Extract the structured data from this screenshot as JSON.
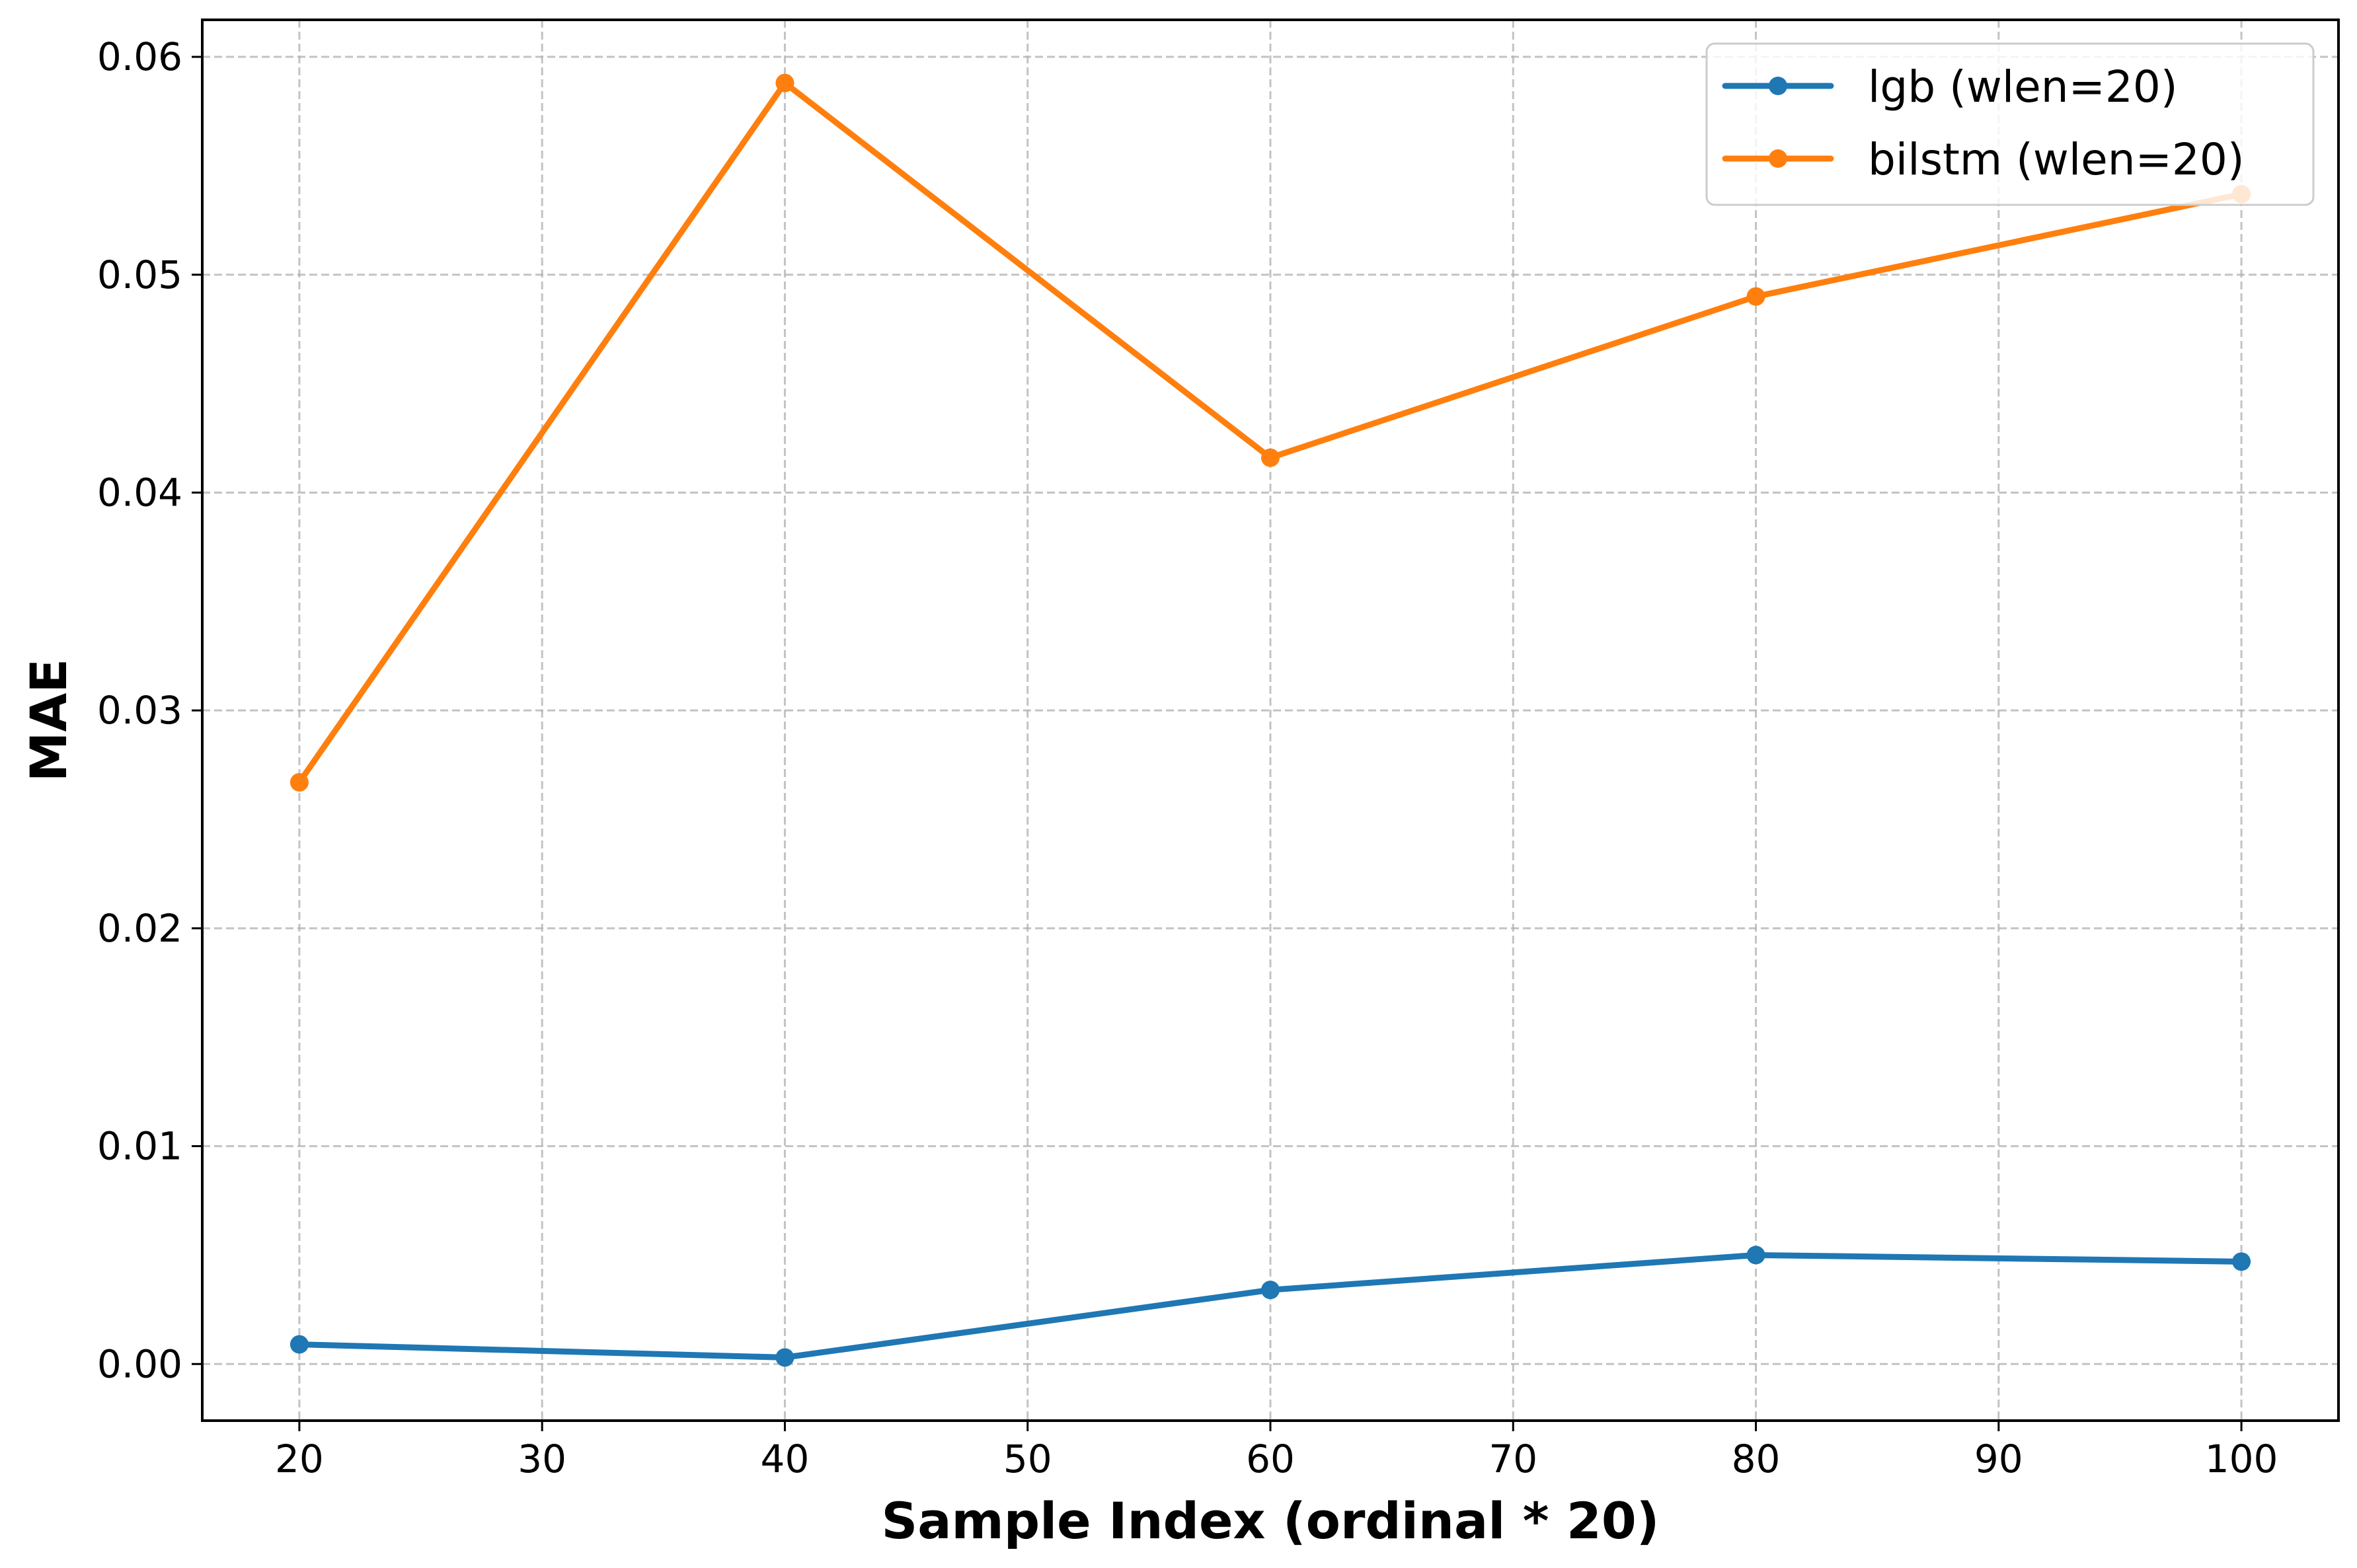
{
  "chart_data": {
    "type": "line",
    "title": "",
    "xlabel": "Sample Index (ordinal * 20)",
    "ylabel": "MAE",
    "xlim": [
      16,
      104
    ],
    "ylim": [
      -0.0026,
      0.0617
    ],
    "x_ticks": [
      20,
      30,
      40,
      50,
      60,
      70,
      80,
      90,
      100
    ],
    "y_ticks": [
      0.0,
      0.01,
      0.02,
      0.03,
      0.04,
      0.05,
      0.06
    ],
    "y_tick_labels": [
      "0.00",
      "0.01",
      "0.02",
      "0.03",
      "0.04",
      "0.05",
      "0.06"
    ],
    "grid": true,
    "legend_position": "top-right",
    "series": [
      {
        "name": "lgb (wlen=20)",
        "color": "#1f77b4",
        "marker": "circle",
        "x": [
          20,
          40,
          60,
          80,
          100
        ],
        "y": [
          0.0009,
          0.0003,
          0.0034,
          0.005,
          0.0047
        ]
      },
      {
        "name": "bilstm (wlen=20)",
        "color": "#ff7f0e",
        "marker": "circle",
        "x": [
          20,
          40,
          60,
          80,
          100
        ],
        "y": [
          0.0267,
          0.0588,
          0.0416,
          0.049,
          0.0537
        ]
      }
    ]
  }
}
